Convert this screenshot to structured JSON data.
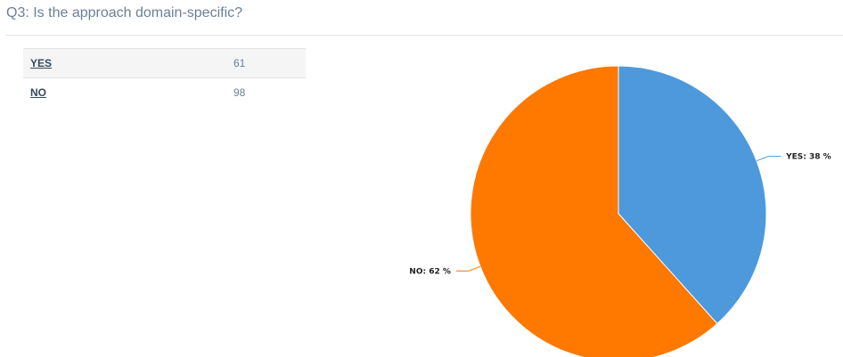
{
  "question": {
    "title": "Q3: Is the approach domain-specific?"
  },
  "table": {
    "rows": [
      {
        "answer": "YES",
        "count": "61"
      },
      {
        "answer": "NO",
        "count": "98"
      }
    ]
  },
  "chart_data": {
    "type": "pie",
    "slices": [
      {
        "label": "YES",
        "value": 61,
        "percent": 38,
        "color": "#4e99dc",
        "display": "YES: 38 %"
      },
      {
        "label": "NO",
        "value": 98,
        "percent": 62,
        "color": "#ff7800",
        "display": "NO: 62 %"
      }
    ],
    "legend": "none"
  }
}
